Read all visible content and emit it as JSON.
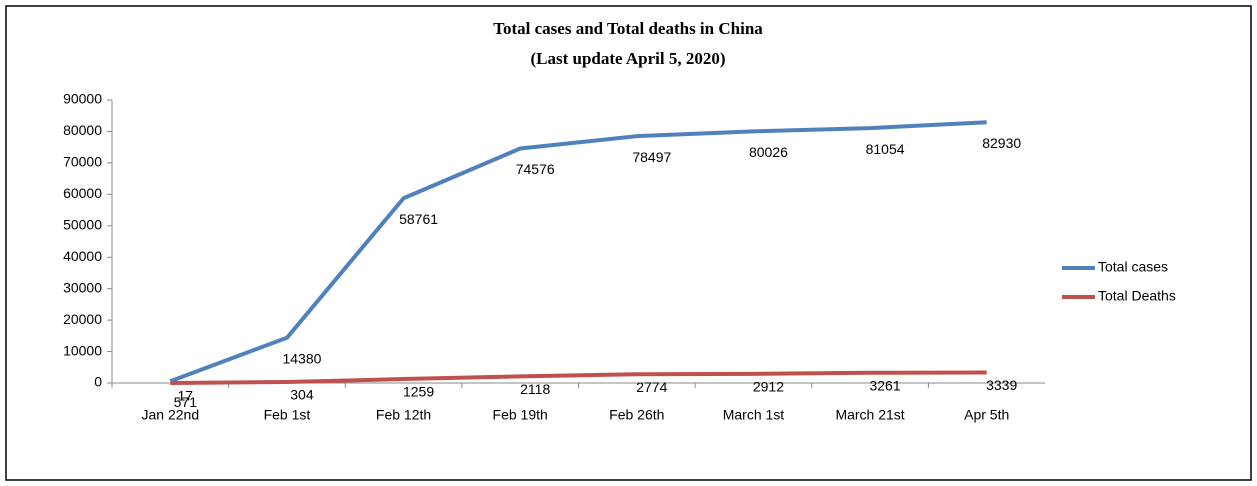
{
  "chart_data": {
    "type": "line",
    "title": "Total cases and Total deaths in China",
    "subtitle": "(Last update April 5, 2020)",
    "categories": [
      "Jan 22nd",
      "Feb 1st",
      "Feb 12th",
      "Feb 19th",
      "Feb 26th",
      "March 1st",
      "March 21st",
      "Apr 5th"
    ],
    "series": [
      {
        "name": "Total cases",
        "color": "#4f81bd",
        "values": [
          571,
          14380,
          58761,
          74576,
          78497,
          80026,
          81054,
          82930
        ]
      },
      {
        "name": "Total Deaths",
        "color": "#c0504d",
        "values": [
          17,
          304,
          1259,
          2118,
          2774,
          2912,
          3261,
          3339
        ]
      }
    ],
    "ylim": [
      0,
      90000
    ],
    "yticks": [
      0,
      10000,
      20000,
      30000,
      40000,
      50000,
      60000,
      70000,
      80000,
      90000
    ],
    "legend": "right"
  }
}
